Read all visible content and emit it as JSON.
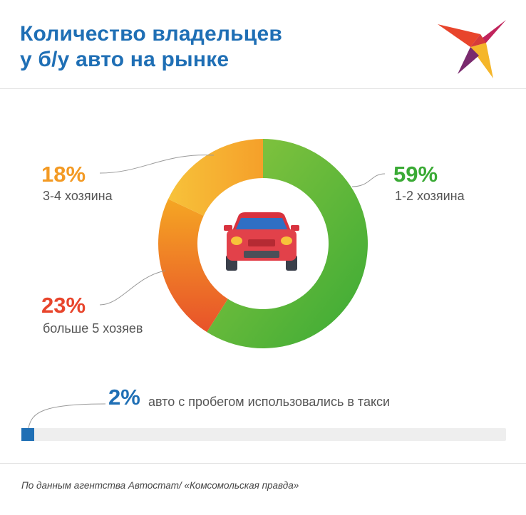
{
  "title": {
    "line1": "Количество владельцев",
    "line2": "у б/у авто на рынке"
  },
  "chart_data": {
    "type": "pie",
    "categories": [
      "1-2 хозяина",
      "больше 5 хозяев",
      "3-4 хозяина"
    ],
    "values": [
      59,
      23,
      18
    ],
    "value_labels": [
      "59%",
      "23%",
      "18%"
    ],
    "colors": [
      {
        "from": "#8cc63f",
        "to": "#3aaa35"
      },
      {
        "from": "#f5a623",
        "to": "#e8522a"
      },
      {
        "from": "#f7c23a",
        "to": "#f5a02a"
      }
    ],
    "label_colors": [
      "#3aaa35",
      "#e8452c",
      "#f39a24"
    ],
    "center_icon": "car-icon"
  },
  "bar": {
    "value": 2,
    "pct_label": "2%",
    "text": "авто с пробегом использовались в такси",
    "color": "#1f6fb5"
  },
  "source": "По данным агентства Автостат/ «Комсомольская правда»",
  "logo_icon": "swallow-logo-icon"
}
